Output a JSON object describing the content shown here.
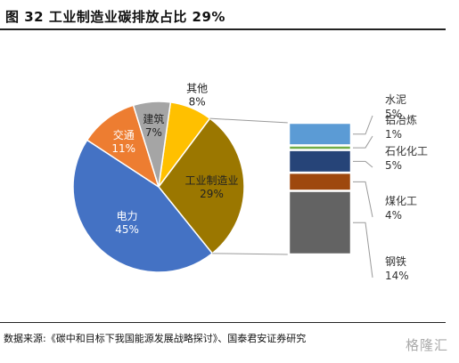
{
  "figure": {
    "title": "图 32 工业制造业碳排放占比 29%",
    "source": "数据来源:《碳中和目标下我国能源发展战略探讨》、国泰君安证券研究",
    "watermark": "格隆汇"
  },
  "chart_data": [
    {
      "type": "pie",
      "title": "",
      "slices": [
        {
          "label": "其他",
          "value": 8,
          "value_label": "8%",
          "color": "#ffc000"
        },
        {
          "label": "工业制造业",
          "value": 29,
          "value_label": "29%",
          "color": "#9b7700"
        },
        {
          "label": "电力",
          "value": 45,
          "value_label": "45%",
          "color": "#4472c4"
        },
        {
          "label": "交通",
          "value": 11,
          "value_label": "11%",
          "color": "#ed7d31"
        },
        {
          "label": "建筑",
          "value": 7,
          "value_label": "7%",
          "color": "#a5a5a5"
        }
      ]
    },
    {
      "type": "bar",
      "stacked": true,
      "title": "",
      "segments": [
        {
          "label": "水泥",
          "value": 5,
          "value_label": "5%",
          "color": "#5b9bd5"
        },
        {
          "label": "铝冶炼",
          "value": 1,
          "value_label": "1%",
          "color": "#70ad47"
        },
        {
          "label": "石化化工",
          "value": 5,
          "value_label": "5%",
          "color": "#264478"
        },
        {
          "label": "煤化工",
          "value": 4,
          "value_label": "4%",
          "color": "#9e480e"
        },
        {
          "label": "钢铁",
          "value": 14,
          "value_label": "14%",
          "color": "#636363"
        }
      ]
    }
  ]
}
